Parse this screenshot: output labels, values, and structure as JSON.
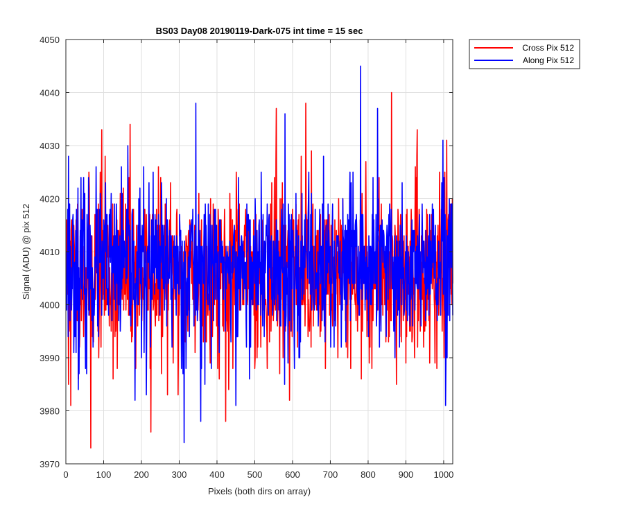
{
  "chart_data": {
    "type": "line",
    "title": "BS03 Day08 20190119-Dark-075 int time = 15 sec",
    "xlabel": "Pixels (both dirs on array)",
    "ylabel": "Signal (ADU) @ pix 512",
    "xlim": [
      0,
      1024
    ],
    "ylim": [
      3970,
      4050
    ],
    "xticks": [
      0,
      100,
      200,
      300,
      400,
      500,
      600,
      700,
      800,
      900,
      1000
    ],
    "yticks": [
      3970,
      3980,
      3990,
      4000,
      4010,
      4020,
      4030,
      4040,
      4050
    ],
    "grid": true,
    "legend_position": "outside-top-right",
    "x": {
      "start": 1,
      "end": 1024,
      "step": 1
    },
    "series": [
      {
        "name": "Cross Pix 512",
        "color": "#ff0000",
        "mean": 4006,
        "std": 8,
        "min": 3973,
        "max": 4040,
        "seed": 11,
        "extremes": [
          [
            7,
            3985
          ],
          [
            13,
            3981
          ],
          [
            66,
            3973
          ],
          [
            95,
            4033
          ],
          [
            136,
            3988
          ],
          [
            170,
            4034
          ],
          [
            225,
            3976
          ],
          [
            297,
            3983
          ],
          [
            423,
            3978
          ],
          [
            557,
            4037
          ],
          [
            635,
            4038
          ],
          [
            862,
            4040
          ],
          [
            930,
            4033
          ]
        ]
      },
      {
        "name": "Along Pix 512",
        "color": "#0000ff",
        "mean": 4007,
        "std": 7.5,
        "min": 3974,
        "max": 4045,
        "seed": 23,
        "extremes": [
          [
            7,
            4028
          ],
          [
            33,
            3984
          ],
          [
            55,
            3987
          ],
          [
            183,
            3982
          ],
          [
            213,
            3983
          ],
          [
            313,
            3974
          ],
          [
            344,
            4038
          ],
          [
            357,
            3978
          ],
          [
            450,
            3981
          ],
          [
            580,
            4036
          ],
          [
            780,
            4045
          ],
          [
            825,
            4037
          ],
          [
            1005,
            3981
          ]
        ]
      }
    ]
  }
}
